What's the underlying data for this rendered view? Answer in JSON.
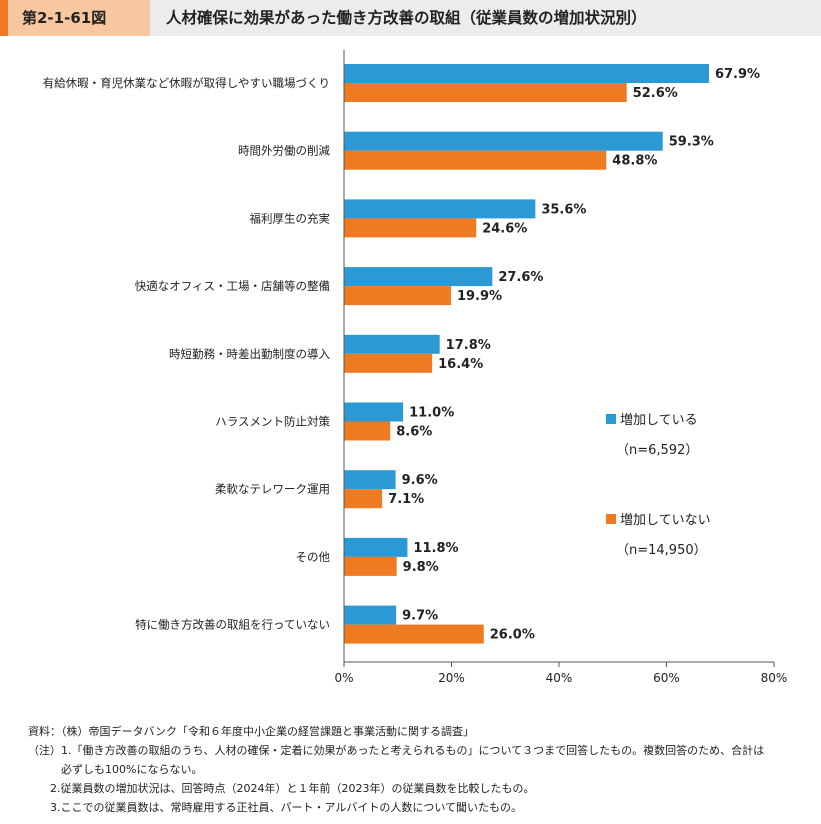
{
  "header": {
    "figure_label": "第2-1-61図",
    "title": "人材確保に効果があった働き方改善の取組（従業員数の増加状況別）"
  },
  "colors": {
    "series1": "#2b9ad4",
    "series2": "#f07a22",
    "axis": "#555555"
  },
  "chart_data": {
    "type": "bar",
    "orientation": "horizontal",
    "categories": [
      "有給休暇・育児休業など休暇が取得しやすい職場づくり",
      "時間外労働の削減",
      "福利厚生の充実",
      "快適なオフィス・工場・店舗等の整備",
      "時短勤務・時差出勤制度の導入",
      "ハラスメント防止対策",
      "柔軟なテレワーク運用",
      "その他",
      "特に働き方改善の取組を行っていない"
    ],
    "series": [
      {
        "name": "増加している",
        "n": "（n=6,592）",
        "values": [
          67.9,
          59.3,
          35.6,
          27.6,
          17.8,
          11.0,
          9.6,
          11.8,
          9.7
        ]
      },
      {
        "name": "増加していない",
        "n": "（n=14,950）",
        "values": [
          52.6,
          48.8,
          24.6,
          19.9,
          16.4,
          8.6,
          7.1,
          9.8,
          26.0
        ]
      }
    ],
    "value_labels": [
      [
        "67.9%",
        "59.3%",
        "35.6%",
        "27.6%",
        "17.8%",
        "11.0%",
        "9.6%",
        "11.8%",
        "9.7%"
      ],
      [
        "52.6%",
        "48.8%",
        "24.6%",
        "19.9%",
        "16.4%",
        "8.6%",
        "7.1%",
        "9.8%",
        "26.0%"
      ]
    ],
    "xlim": [
      0,
      80
    ],
    "xticks": [
      "0%",
      "20%",
      "40%",
      "60%",
      "80%"
    ],
    "grid": false,
    "legend_position": "right"
  },
  "notes": [
    "資料：（株）帝国データバンク「令和６年度中小企業の経営課題と事業活動に関する調査」",
    "（注）1.「働き方改善の取組のうち、人材の確保・定着に効果があったと考えられるもの」について３つまで回答したもの。複数回答のため、合計は",
    "　　　必ずしも100%にならない。",
    "　　2.従業員数の増加状況は、回答時点（2024年）と１年前（2023年）の従業員数を比較したもの。",
    "　　3.ここでの従業員数は、常時雇用する正社員、パート・アルバイトの人数について聞いたもの。"
  ]
}
